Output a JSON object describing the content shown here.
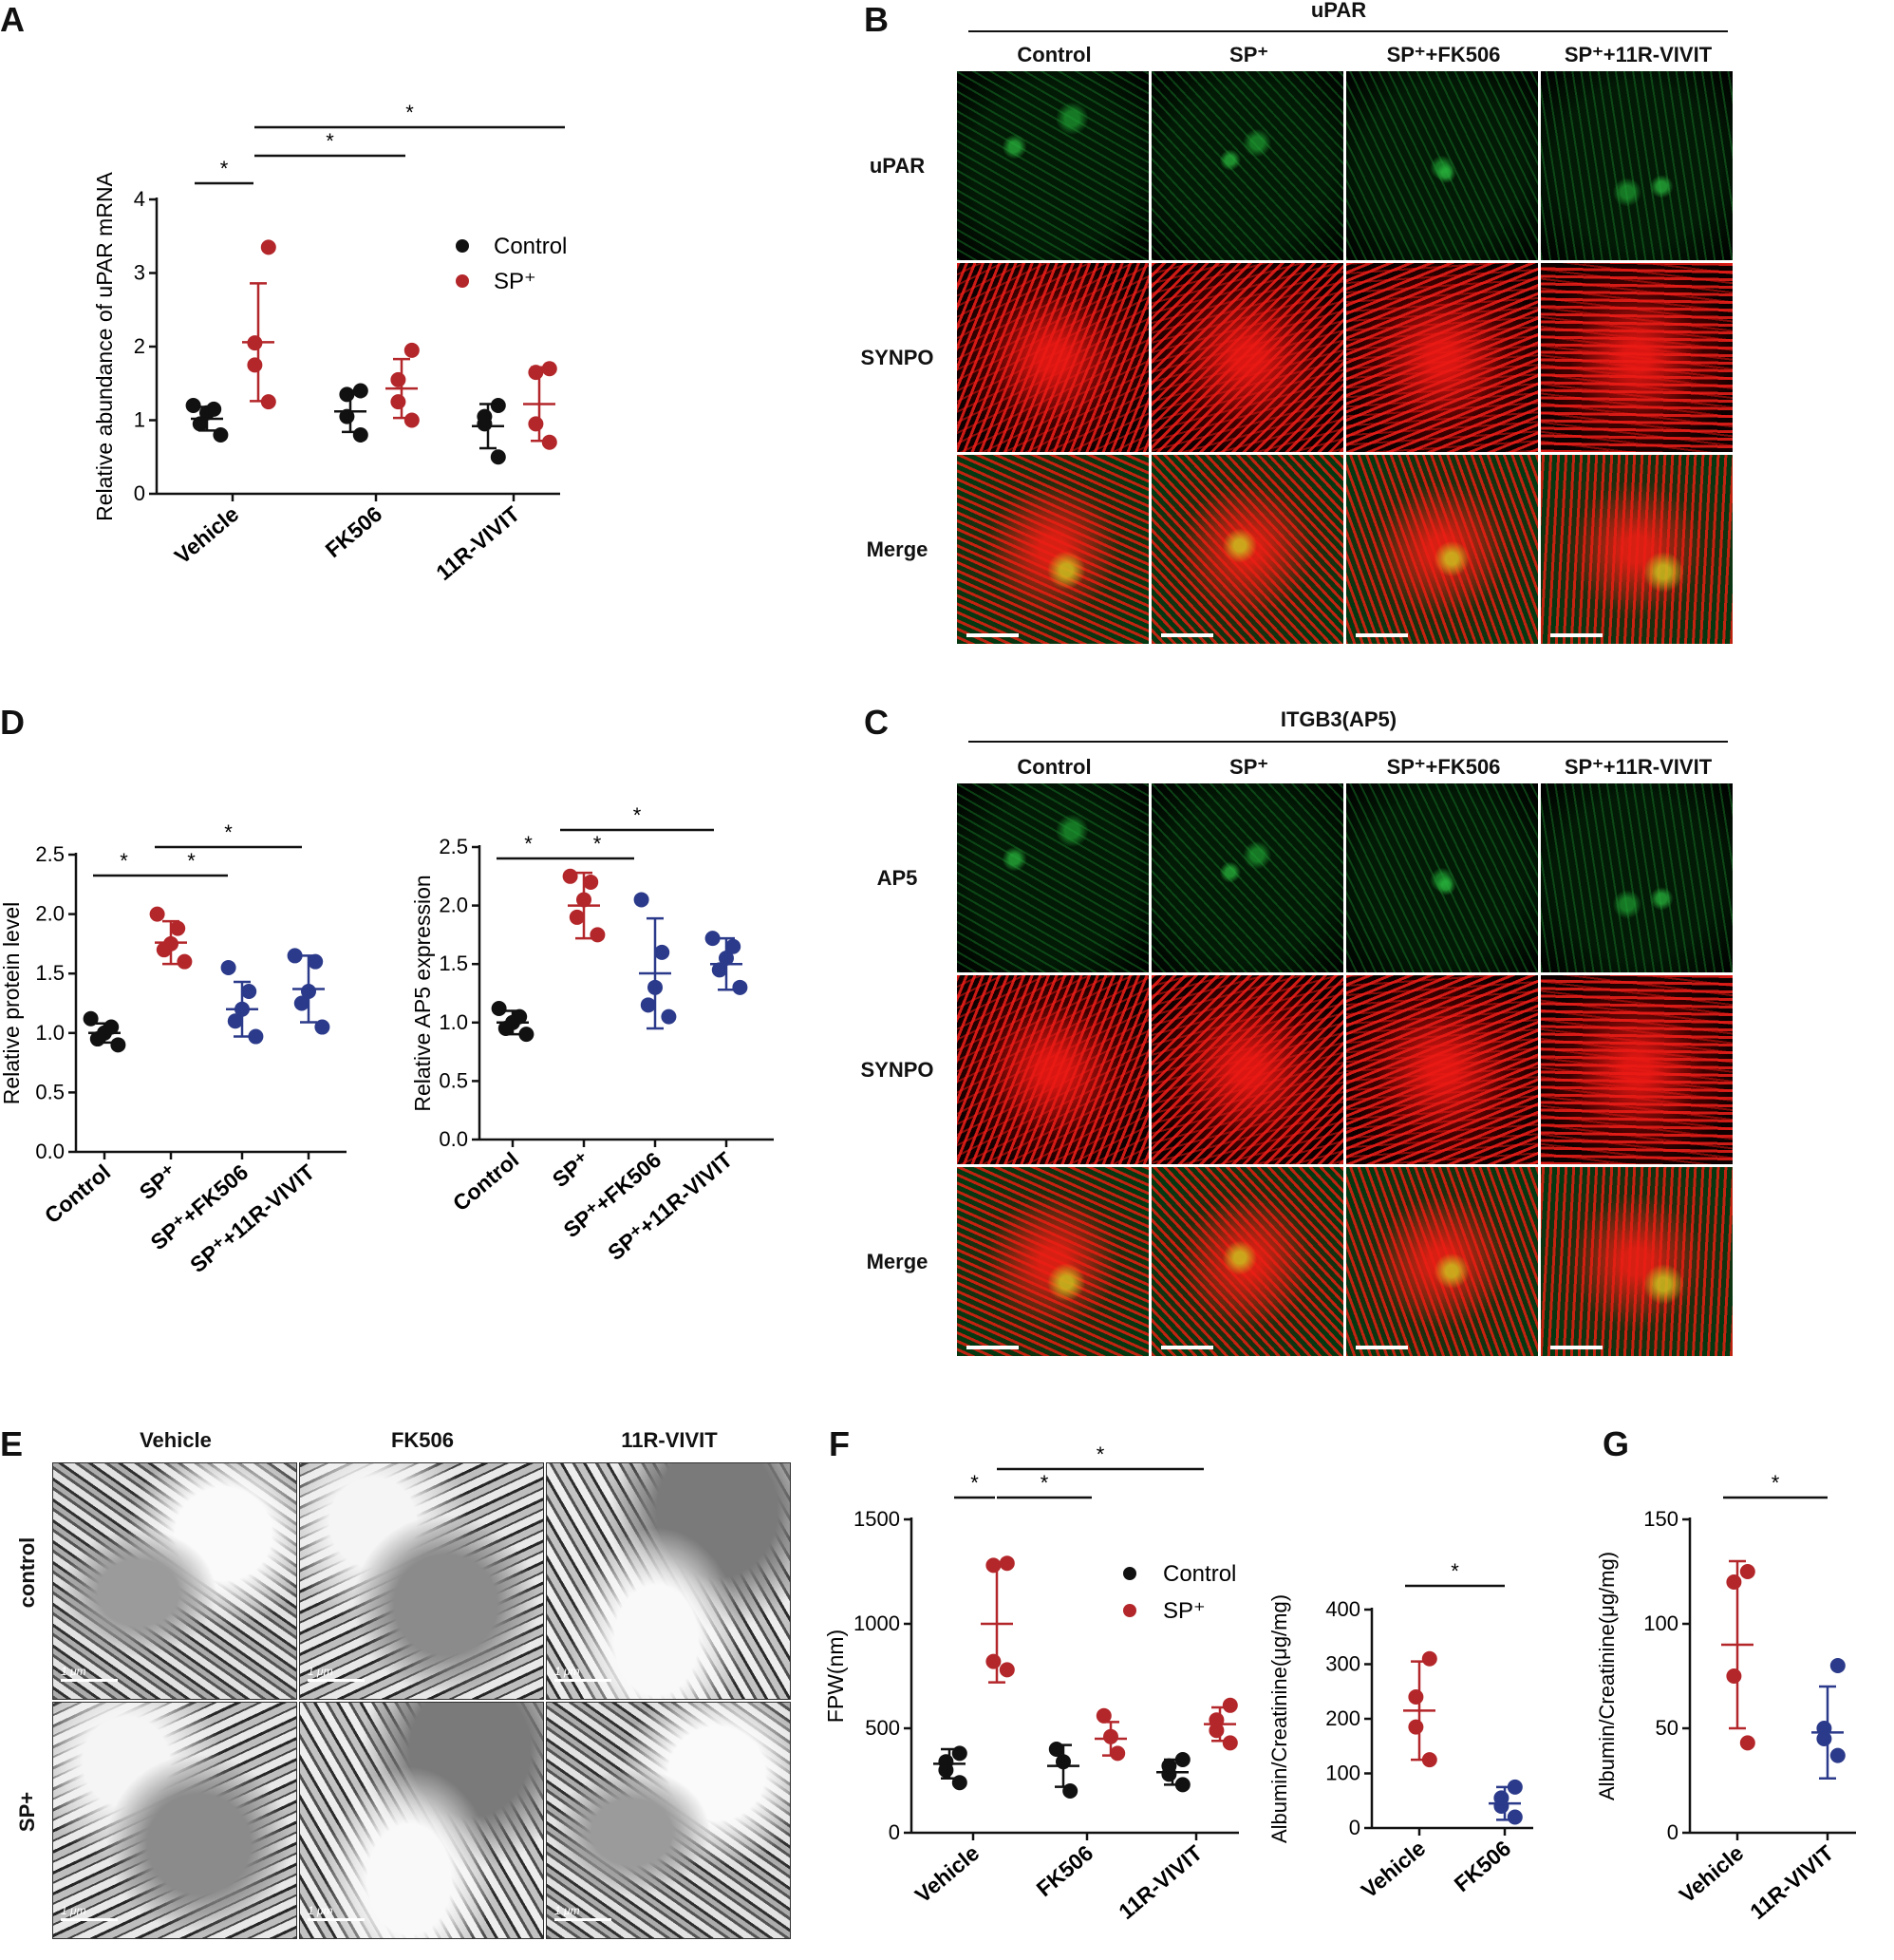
{
  "panels": {
    "A": "A",
    "B": "B",
    "C": "C",
    "D": "D",
    "E": "E",
    "F": "F",
    "G": "G"
  },
  "legend": {
    "control": "Control",
    "sp": "SP⁺"
  },
  "colors": {
    "control": "#111111",
    "sp": "#b3262a",
    "treat": "#2b3a8a"
  },
  "panel_B": {
    "header": "uPAR",
    "columns": [
      "Control",
      "SP⁺",
      "SP⁺+FK506",
      "SP⁺+11R-VIVIT"
    ],
    "rows": [
      "uPAR",
      "SYNPO",
      "Merge"
    ]
  },
  "panel_C": {
    "header": "ITGB3(AP5)",
    "columns": [
      "Control",
      "SP⁺",
      "SP⁺+FK506",
      "SP⁺+11R-VIVIT"
    ],
    "rows": [
      "AP5",
      "SYNPO",
      "Merge"
    ]
  },
  "panel_E": {
    "columns": [
      "Vehicle",
      "FK506",
      "11R-VIVIT"
    ],
    "rows": [
      "control",
      "SP+"
    ],
    "scale_label": "1 μm"
  },
  "sig": "*",
  "chart_data": [
    {
      "id": "A",
      "type": "scatter",
      "ylabel": "Relative abundance of uPAR mRNA",
      "categories": [
        "Vehicle",
        "FK506",
        "11R-VIVIT"
      ],
      "ylim": [
        0,
        4
      ],
      "yticks": [
        0,
        1,
        2,
        3,
        4
      ],
      "series": [
        {
          "name": "Control",
          "groups": [
            {
              "cat": 0,
              "points": [
                0.8,
                0.95,
                1.1,
                1.15,
                1.2
              ],
              "mean": 1.02,
              "sd": 0.16
            },
            {
              "cat": 1,
              "points": [
                0.8,
                1.05,
                1.35,
                1.4
              ],
              "mean": 1.12,
              "sd": 0.28
            },
            {
              "cat": 2,
              "points": [
                0.5,
                0.95,
                1.05,
                1.2
              ],
              "mean": 0.92,
              "sd": 0.3
            }
          ]
        },
        {
          "name": "SP⁺",
          "groups": [
            {
              "cat": 0,
              "points": [
                1.25,
                1.75,
                2.05,
                3.35
              ],
              "mean": 2.06,
              "sd": 0.8
            },
            {
              "cat": 1,
              "points": [
                1.0,
                1.25,
                1.55,
                1.95
              ],
              "mean": 1.43,
              "sd": 0.4
            },
            {
              "cat": 2,
              "points": [
                0.7,
                0.95,
                1.65,
                1.7
              ],
              "mean": 1.22,
              "sd": 0.5
            }
          ]
        }
      ],
      "significance": [
        "Vehicle Control vs SP⁺",
        "Vehicle SP⁺ vs FK506 SP⁺",
        "Vehicle SP⁺ vs 11R-VIVIT SP⁺"
      ]
    },
    {
      "id": "D1",
      "type": "scatter",
      "ylabel": "Relative protein level",
      "categories": [
        "Control",
        "SP⁺",
        "SP⁺+FK506",
        "SP⁺+11R-VIVIT"
      ],
      "ylim": [
        0,
        2.5
      ],
      "yticks": [
        0.0,
        0.5,
        1.0,
        1.5,
        2.0,
        2.5
      ],
      "groups": [
        {
          "cat": 0,
          "points": [
            0.9,
            0.95,
            1.0,
            1.05,
            1.12
          ],
          "mean": 1.0,
          "sd": 0.08,
          "color": "control"
        },
        {
          "cat": 1,
          "points": [
            1.6,
            1.7,
            1.75,
            1.88,
            2.0
          ],
          "mean": 1.76,
          "sd": 0.18,
          "color": "sp"
        },
        {
          "cat": 2,
          "points": [
            0.97,
            1.1,
            1.2,
            1.35,
            1.55
          ],
          "mean": 1.2,
          "sd": 0.23,
          "color": "treat"
        },
        {
          "cat": 3,
          "points": [
            1.05,
            1.25,
            1.35,
            1.6,
            1.65
          ],
          "mean": 1.37,
          "sd": 0.28,
          "color": "treat"
        }
      ]
    },
    {
      "id": "D2",
      "type": "scatter",
      "ylabel": "Relative AP5 expression",
      "categories": [
        "Control",
        "SP⁺",
        "SP⁺+FK506",
        "SP⁺+11R-VIVIT"
      ],
      "ylim": [
        0,
        2.5
      ],
      "yticks": [
        0.0,
        0.5,
        1.0,
        1.5,
        2.0,
        2.5
      ],
      "groups": [
        {
          "cat": 0,
          "points": [
            0.9,
            0.95,
            1.0,
            1.05,
            1.12
          ],
          "mean": 1.0,
          "sd": 0.1,
          "color": "control"
        },
        {
          "cat": 1,
          "points": [
            1.75,
            1.9,
            2.05,
            2.2,
            2.25
          ],
          "mean": 2.0,
          "sd": 0.28,
          "color": "sp"
        },
        {
          "cat": 2,
          "points": [
            1.05,
            1.15,
            1.3,
            1.6,
            2.05
          ],
          "mean": 1.42,
          "sd": 0.47,
          "color": "treat"
        },
        {
          "cat": 3,
          "points": [
            1.3,
            1.45,
            1.55,
            1.65,
            1.72
          ],
          "mean": 1.5,
          "sd": 0.22,
          "color": "treat"
        }
      ]
    },
    {
      "id": "F1",
      "type": "scatter",
      "ylabel": "FPW(nm)",
      "categories": [
        "Vehicle",
        "FK506",
        "11R-VIVIT"
      ],
      "ylim": [
        0,
        1500
      ],
      "yticks": [
        0,
        500,
        1000,
        1500
      ],
      "series": [
        {
          "name": "Control",
          "groups": [
            {
              "cat": 0,
              "points": [
                240,
                300,
                340,
                380
              ],
              "mean": 330,
              "sd": 70
            },
            {
              "cat": 1,
              "points": [
                200,
                340,
                400
              ],
              "mean": 320,
              "sd": 100
            },
            {
              "cat": 2,
              "points": [
                230,
                280,
                320,
                350
              ],
              "mean": 290,
              "sd": 60
            }
          ]
        },
        {
          "name": "SP⁺",
          "groups": [
            {
              "cat": 0,
              "points": [
                780,
                820,
                1280,
                1290
              ],
              "mean": 1000,
              "sd": 280
            },
            {
              "cat": 1,
              "points": [
                380,
                460,
                560
              ],
              "mean": 450,
              "sd": 80
            },
            {
              "cat": 2,
              "points": [
                430,
                490,
                540,
                610
              ],
              "mean": 520,
              "sd": 80
            }
          ]
        }
      ]
    },
    {
      "id": "F2",
      "type": "scatter",
      "ylabel": "Albumin/Creatinine(μg/mg)",
      "categories": [
        "Vehicle",
        "FK506"
      ],
      "ylim": [
        0,
        400
      ],
      "yticks": [
        0,
        100,
        200,
        300,
        400
      ],
      "groups": [
        {
          "cat": 0,
          "points": [
            125,
            185,
            240,
            310
          ],
          "mean": 215,
          "sd": 90,
          "color": "sp"
        },
        {
          "cat": 1,
          "points": [
            20,
            40,
            55,
            75
          ],
          "mean": 45,
          "sd": 30,
          "color": "treat"
        }
      ]
    },
    {
      "id": "G",
      "type": "scatter",
      "ylabel": "Albumin/Creatinine(μg/mg)",
      "categories": [
        "Vehicle",
        "11R-VIVIT"
      ],
      "ylim": [
        0,
        150
      ],
      "yticks": [
        0,
        50,
        100,
        150
      ],
      "groups": [
        {
          "cat": 0,
          "points": [
            43,
            75,
            120,
            125
          ],
          "mean": 90,
          "sd": 40,
          "color": "sp"
        },
        {
          "cat": 1,
          "points": [
            37,
            45,
            50,
            80
          ],
          "mean": 48,
          "sd": 22,
          "color": "treat"
        }
      ]
    }
  ]
}
